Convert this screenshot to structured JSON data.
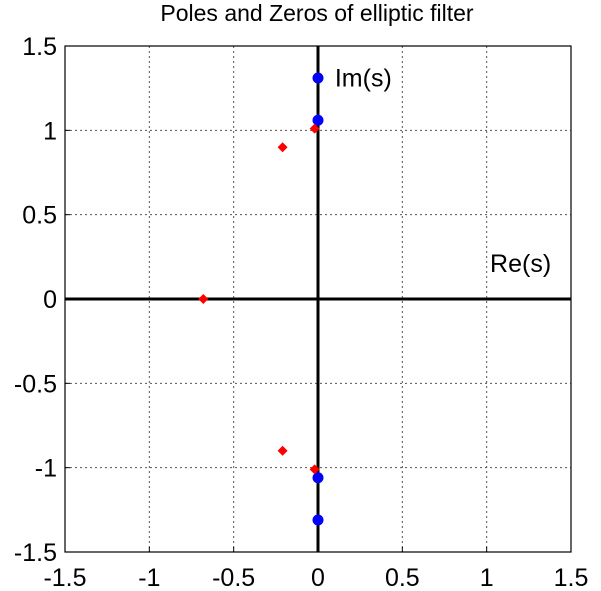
{
  "chart_data": {
    "type": "scatter",
    "title": "Poles and Zeros of elliptic filter",
    "xlabel": "",
    "ylabel": "",
    "xlim": [
      -1.5,
      1.5
    ],
    "ylim": [
      -1.5,
      1.5
    ],
    "xticks": [
      -1.5,
      -1,
      -0.5,
      0,
      0.5,
      1,
      1.5
    ],
    "xtick_labels": [
      "-1.5",
      "-1",
      "-0.5",
      "0",
      "0.5",
      "1",
      "1.5"
    ],
    "yticks": [
      1.5,
      1,
      0.5,
      0,
      -0.5,
      -1,
      -1.5
    ],
    "ytick_labels": [
      "1.5",
      "1",
      "0.5",
      "0",
      "-0.5",
      "-1",
      "-1.5"
    ],
    "grid": true,
    "grid_style": "dotted",
    "series": [
      {
        "marker": "circle",
        "color": "#0000ff",
        "points": [
          {
            "x": 0,
            "y": 1.31
          },
          {
            "x": 0,
            "y": 1.06
          },
          {
            "x": 0,
            "y": -1.06
          },
          {
            "x": 0,
            "y": -1.31
          }
        ]
      },
      {
        "marker": "diamond",
        "color": "#ff0000",
        "points": [
          {
            "x": -0.02,
            "y": 1.01
          },
          {
            "x": -0.21,
            "y": 0.9
          },
          {
            "x": -0.68,
            "y": 0
          },
          {
            "x": -0.21,
            "y": -0.9
          },
          {
            "x": -0.02,
            "y": -1.01
          }
        ]
      }
    ],
    "annotations": [
      {
        "text": "Im(s)",
        "x": 0.1,
        "y": 1.26
      },
      {
        "text": "Re(s)",
        "x": 1.02,
        "y": 0.16
      }
    ],
    "axis_lines_color": "#000000"
  }
}
